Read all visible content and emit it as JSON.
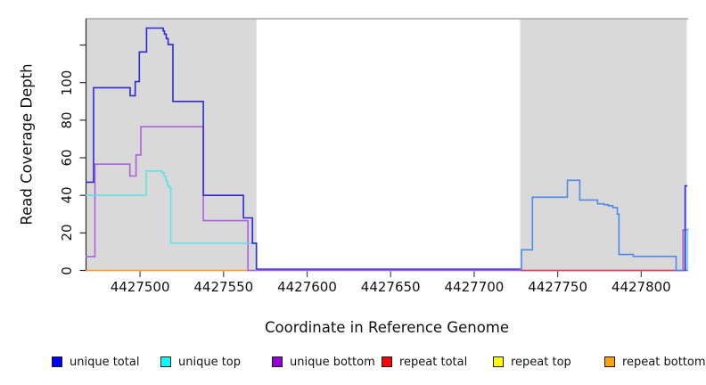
{
  "chart_data": {
    "type": "line",
    "title": "",
    "xlabel": "Coordinate in Reference Genome",
    "ylabel": "Read Coverage Depth",
    "xlim": [
      4427467.4,
      4427828.1
    ],
    "ylim": [
      0,
      134
    ],
    "grid": false,
    "legend_position": "bottom",
    "x_ticks": [
      {
        "value": 4427500,
        "label": "4427500"
      },
      {
        "value": 4427550,
        "label": "4427550"
      },
      {
        "value": 4427600,
        "label": "4427600"
      },
      {
        "value": 4427650,
        "label": "4427650"
      },
      {
        "value": 4427700,
        "label": "4427700"
      },
      {
        "value": 4427750,
        "label": "4427750"
      },
      {
        "value": 4427800,
        "label": "4427800"
      }
    ],
    "y_ticks": [
      {
        "value": 0,
        "label": "0"
      },
      {
        "value": 20,
        "label": "20"
      },
      {
        "value": 40,
        "label": "40"
      },
      {
        "value": 60,
        "label": "60"
      },
      {
        "value": 80,
        "label": "80"
      },
      {
        "value": 100,
        "label": "100"
      },
      {
        "value": 120,
        "label": ""
      }
    ],
    "background_regions": [
      {
        "name": "left-shaded-region",
        "x0": 4427467.4,
        "x1": 4427569.7,
        "color": "#d9d9d9"
      },
      {
        "name": "right-shaded-region",
        "x0": 4427727.5,
        "x1": 4427827.3,
        "color": "#d9d9d9"
      }
    ],
    "frame": {
      "top_border_color": "#a6a6a6",
      "axis_color": "#2b2b2b"
    },
    "legend": [
      {
        "label": "unique total",
        "color": "#0000ff"
      },
      {
        "label": "unique top",
        "color": "#00ffff"
      },
      {
        "label": "unique bottom",
        "color": "#9400d3"
      },
      {
        "label": "repeat total",
        "color": "#ff0000"
      },
      {
        "label": "repeat top",
        "color": "#ffff00"
      },
      {
        "label": "repeat bottom",
        "color": "#ffa300"
      }
    ],
    "series": [
      {
        "name": "repeat bottom (baseline, left region)",
        "legend": "repeat bottom",
        "color": "#ff9d2e",
        "points": [
          [
            4427467.4,
            0
          ],
          [
            4427568,
            0
          ]
        ]
      },
      {
        "name": "unique bottom",
        "legend": "unique bottom",
        "color": "#ad62dd",
        "points": [
          [
            4427467.4,
            7.4
          ],
          [
            4427473,
            7.4
          ],
          [
            4427473,
            56.6
          ],
          [
            4427493.9,
            56.6
          ],
          [
            4427493.9,
            50.3
          ],
          [
            4427497.6,
            50.3
          ],
          [
            4427497.6,
            61.5
          ],
          [
            4427500.5,
            61.5
          ],
          [
            4427500.5,
            76.5
          ],
          [
            4427537.9,
            76.5
          ],
          [
            4427537.9,
            26.5
          ],
          [
            4427564.6,
            26.5
          ],
          [
            4427564.6,
            0
          ],
          [
            4427825,
            0
          ],
          [
            4427825,
            21.5
          ],
          [
            4427827.7,
            21.5
          ]
        ]
      },
      {
        "name": "repeat total (baseline, right region)",
        "legend": "repeat total",
        "color": "#dd4766",
        "points": [
          [
            4427727.5,
            0
          ],
          [
            4427828.1,
            0
          ]
        ]
      },
      {
        "name": "unique top",
        "legend": "unique top",
        "color": "#5fe3e8",
        "points": [
          [
            4427467.4,
            40
          ],
          [
            4427503.7,
            40
          ],
          [
            4427503.7,
            53
          ],
          [
            4427513.1,
            53
          ],
          [
            4427513.1,
            52
          ],
          [
            4427514.4,
            52
          ],
          [
            4427514.4,
            50
          ],
          [
            4427515.5,
            50
          ],
          [
            4427515.5,
            47.5
          ],
          [
            4427516.6,
            47.5
          ],
          [
            4427516.6,
            45
          ],
          [
            4427517.6,
            45
          ],
          [
            4427517.6,
            44
          ],
          [
            4427518.4,
            44
          ],
          [
            4427518.4,
            14.5
          ],
          [
            4427569.7,
            14.5
          ],
          [
            4427569.7,
            0
          ]
        ]
      },
      {
        "name": "unique total (left region + middle baseline)",
        "legend": "unique total",
        "color": "#2e2ad8",
        "points": [
          [
            4427467.4,
            47
          ],
          [
            4427472.2,
            47
          ],
          [
            4427472.2,
            97.3
          ],
          [
            4427494.1,
            97.3
          ],
          [
            4427494.1,
            93
          ],
          [
            4427497.1,
            93
          ],
          [
            4427497.1,
            100.5
          ],
          [
            4427499.6,
            100.5
          ],
          [
            4427499.6,
            116.3
          ],
          [
            4427503.9,
            116.3
          ],
          [
            4427503.9,
            129
          ],
          [
            4427513.9,
            129
          ],
          [
            4427513.9,
            127.5
          ],
          [
            4427514.6,
            127.5
          ],
          [
            4427514.6,
            125.8
          ],
          [
            4427515.7,
            125.8
          ],
          [
            4427515.7,
            123.4
          ],
          [
            4427516.8,
            123.4
          ],
          [
            4427516.8,
            120.3
          ],
          [
            4427519.7,
            120.3
          ],
          [
            4427519.7,
            90
          ],
          [
            4427537.9,
            90
          ],
          [
            4427537.9,
            40
          ],
          [
            4427561.9,
            40
          ],
          [
            4427561.9,
            28
          ],
          [
            4427567.3,
            28
          ],
          [
            4427567.3,
            14.5
          ],
          [
            4427569.7,
            14.5
          ],
          [
            4427569.7,
            0.7
          ],
          [
            4427727.5,
            0.7
          ]
        ]
      },
      {
        "name": "unique total (right region)",
        "legend": "unique total",
        "color": "#4f8ae8",
        "points": [
          [
            4427727.5,
            0.7
          ],
          [
            4427728.3,
            0.7
          ],
          [
            4427728.3,
            11
          ],
          [
            4427734.9,
            11
          ],
          [
            4427734.9,
            39
          ],
          [
            4427755.8,
            39
          ],
          [
            4427755.8,
            48
          ],
          [
            4427763.2,
            48
          ],
          [
            4427763.2,
            37.5
          ],
          [
            4427773.9,
            37.5
          ],
          [
            4427773.9,
            35.5
          ],
          [
            4427777.7,
            35.5
          ],
          [
            4427777.7,
            35
          ],
          [
            4427780.3,
            35
          ],
          [
            4427780.3,
            34.5
          ],
          [
            4427783,
            34.5
          ],
          [
            4427783,
            33.5
          ],
          [
            4427785.7,
            33.5
          ],
          [
            4427785.7,
            30
          ],
          [
            4427786.7,
            30
          ],
          [
            4427786.7,
            8.5
          ],
          [
            4427795.3,
            8.5
          ],
          [
            4427795.3,
            7.5
          ],
          [
            4427820.9,
            7.5
          ],
          [
            4427820.9,
            0
          ],
          [
            4427826.3,
            0
          ]
        ]
      },
      {
        "name": "unique total (right edge spike)",
        "legend": "unique total",
        "color": "#2e2ad8",
        "points": [
          [
            4427826.3,
            0
          ],
          [
            4427826.3,
            45
          ],
          [
            4427827.6,
            45
          ]
        ]
      },
      {
        "name": "unique top (right edge spike)",
        "legend": "unique top",
        "color": "#5fe3e8",
        "points": [
          [
            4427827.7,
            0
          ],
          [
            4427827.7,
            22
          ],
          [
            4427828.6,
            22
          ]
        ]
      }
    ]
  }
}
